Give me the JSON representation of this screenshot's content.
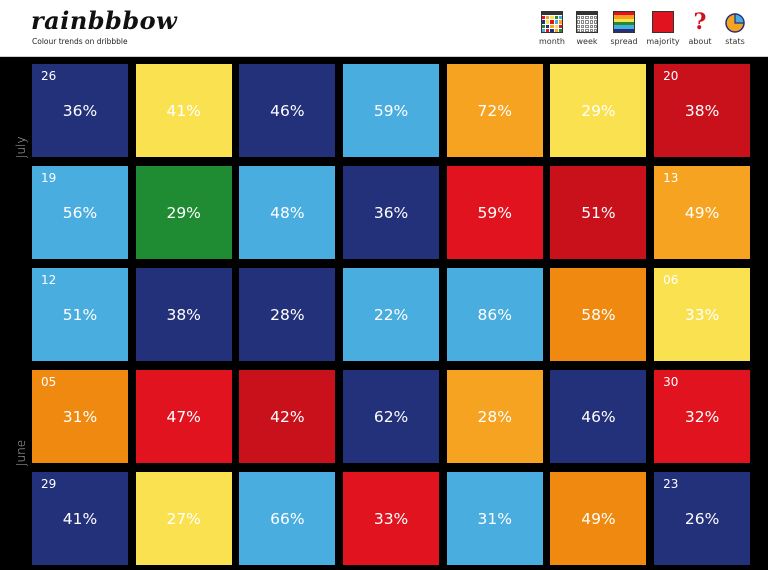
{
  "header": {
    "logo": "rainbbbow",
    "tagline": "Colour trends on dribbble",
    "nav": [
      {
        "key": "month",
        "label": "month",
        "icon": "month-calendar-icon"
      },
      {
        "key": "week",
        "label": "week",
        "icon": "week-calendar-icon"
      },
      {
        "key": "spread",
        "label": "spread",
        "icon": "spread-stripes-icon"
      },
      {
        "key": "majority",
        "label": "majority",
        "icon": "majority-square-icon"
      },
      {
        "key": "about",
        "label": "about",
        "icon": "question-mark-icon"
      },
      {
        "key": "stats",
        "label": "stats",
        "icon": "pie-chart-icon"
      }
    ]
  },
  "months": {
    "top": "July",
    "bottom": "June"
  },
  "colors": {
    "navy": "#23307a",
    "yellow": "#f9e14f",
    "sky": "#4aade0",
    "orange": "#f5a321",
    "red": "#e0131f",
    "crimson": "#c9111c",
    "green": "#1f8b32",
    "amber": "#f0890f"
  },
  "rows": [
    [
      {
        "date": "26",
        "pct": "36%",
        "color": "#23307a"
      },
      {
        "date": "",
        "pct": "41%",
        "color": "#f9e14f"
      },
      {
        "date": "",
        "pct": "46%",
        "color": "#23307a"
      },
      {
        "date": "",
        "pct": "59%",
        "color": "#4aade0"
      },
      {
        "date": "",
        "pct": "72%",
        "color": "#f5a321"
      },
      {
        "date": "",
        "pct": "29%",
        "color": "#f9e14f"
      },
      {
        "date": "20",
        "pct": "38%",
        "color": "#c9111c"
      }
    ],
    [
      {
        "date": "19",
        "pct": "56%",
        "color": "#4aade0"
      },
      {
        "date": "",
        "pct": "29%",
        "color": "#1f8b32"
      },
      {
        "date": "",
        "pct": "48%",
        "color": "#4aade0"
      },
      {
        "date": "",
        "pct": "36%",
        "color": "#23307a"
      },
      {
        "date": "",
        "pct": "59%",
        "color": "#e0131f"
      },
      {
        "date": "",
        "pct": "51%",
        "color": "#c9111c"
      },
      {
        "date": "13",
        "pct": "49%",
        "color": "#f5a321"
      }
    ],
    [
      {
        "date": "12",
        "pct": "51%",
        "color": "#4aade0"
      },
      {
        "date": "",
        "pct": "38%",
        "color": "#23307a"
      },
      {
        "date": "",
        "pct": "28%",
        "color": "#23307a"
      },
      {
        "date": "",
        "pct": "22%",
        "color": "#4aade0"
      },
      {
        "date": "",
        "pct": "86%",
        "color": "#4aade0"
      },
      {
        "date": "",
        "pct": "58%",
        "color": "#f0890f"
      },
      {
        "date": "06",
        "pct": "33%",
        "color": "#f9e14f"
      }
    ],
    [
      {
        "date": "05",
        "pct": "31%",
        "color": "#f0890f"
      },
      {
        "date": "",
        "pct": "47%",
        "color": "#e0131f"
      },
      {
        "date": "",
        "pct": "42%",
        "color": "#c9111c"
      },
      {
        "date": "",
        "pct": "62%",
        "color": "#23307a"
      },
      {
        "date": "",
        "pct": "28%",
        "color": "#f5a321"
      },
      {
        "date": "",
        "pct": "46%",
        "color": "#23307a"
      },
      {
        "date": "30",
        "pct": "32%",
        "color": "#e0131f"
      }
    ],
    [
      {
        "date": "29",
        "pct": "41%",
        "color": "#23307a"
      },
      {
        "date": "",
        "pct": "27%",
        "color": "#f9e14f"
      },
      {
        "date": "",
        "pct": "66%",
        "color": "#4aade0"
      },
      {
        "date": "",
        "pct": "33%",
        "color": "#e0131f"
      },
      {
        "date": "",
        "pct": "31%",
        "color": "#4aade0"
      },
      {
        "date": "",
        "pct": "49%",
        "color": "#f0890f"
      },
      {
        "date": "23",
        "pct": "26%",
        "color": "#23307a"
      }
    ]
  ]
}
